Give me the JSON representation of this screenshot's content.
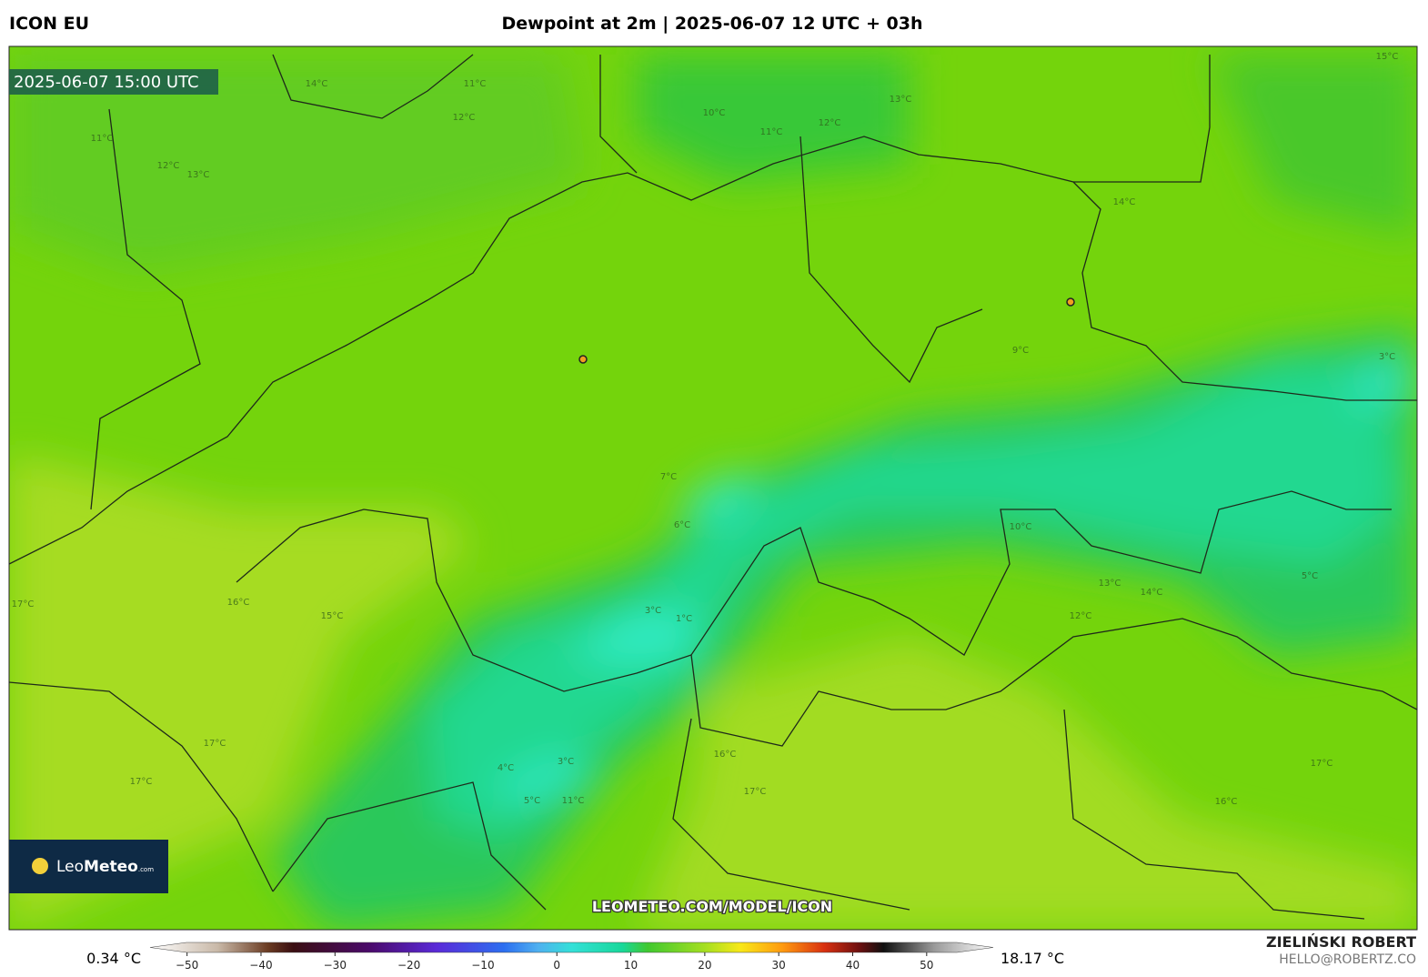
{
  "header": {
    "model": "ICON EU",
    "title": "Dewpoint at 2m | 2025-06-07 12 UTC + 03h"
  },
  "map": {
    "valid_time": "2025-06-07 15:00 UTC",
    "logo": {
      "brand_light": "Leo",
      "brand_bold": "Meteo",
      "domain": ".com"
    },
    "watermark": "LEOMETEO.COM/MODEL/ICON",
    "contour_labels": [
      "14°C",
      "11°C",
      "12°C",
      "11°C",
      "12°C",
      "13°C",
      "10°C",
      "11°C",
      "12°C",
      "13°C",
      "15°C",
      "3°C",
      "1°C",
      "3°C",
      "17°C",
      "16°C",
      "15°C",
      "17°C",
      "17°C",
      "16°C",
      "17°C",
      "13°C",
      "14°C",
      "12°C",
      "16°C",
      "17°C",
      "7°C",
      "6°C",
      "4°C",
      "3°C",
      "5°C",
      "11°C",
      "9°C",
      "10°C",
      "5°C",
      "14°C"
    ]
  },
  "colorbar": {
    "min_label": "0.34 °C",
    "max_label": "18.17 °C",
    "range": [
      -55,
      59
    ],
    "ticks": [
      {
        "value": -50,
        "label": "−50"
      },
      {
        "value": -40,
        "label": "−40"
      },
      {
        "value": -30,
        "label": "−30"
      },
      {
        "value": -20,
        "label": "−20"
      },
      {
        "value": -10,
        "label": "−10"
      },
      0,
      10,
      20,
      30,
      40,
      50
    ]
  },
  "footer": {
    "author": "ZIELIŃSKI ROBERT",
    "email": "HELLO@ROBERTZ.CO"
  }
}
